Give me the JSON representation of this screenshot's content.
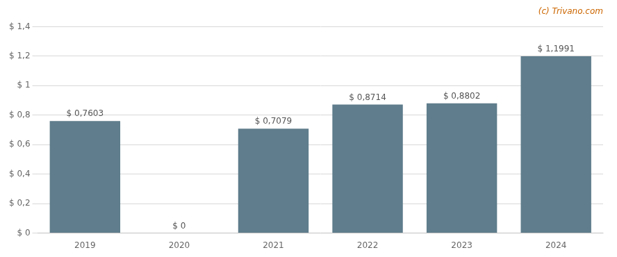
{
  "chart_data": {
    "type": "bar",
    "categories": [
      "2019",
      "2020",
      "2021",
      "2022",
      "2023",
      "2024"
    ],
    "values": [
      0.7603,
      0.0,
      0.7079,
      0.8714,
      0.8802,
      1.1991
    ],
    "value_labels": [
      "$ 0,7603",
      "$ 0",
      "$ 0,7079",
      "$ 0,8714",
      "$ 0,8802",
      "$ 1,1991"
    ],
    "data_labels": true,
    "color": "#5f7d8c",
    "ylim": [
      0,
      1.4
    ],
    "yticks": [
      {
        "value": 0,
        "label": "$ 0"
      },
      {
        "value": 0.2,
        "label": "$ 0,2"
      },
      {
        "value": 0.4,
        "label": "$ 0,4"
      },
      {
        "value": 0.6,
        "label": "$ 0,6"
      },
      {
        "value": 0.8,
        "label": "$ 0,8"
      },
      {
        "value": 1.0,
        "label": "$ 1"
      },
      {
        "value": 1.2,
        "label": "$ 1,2"
      },
      {
        "value": 1.4,
        "label": "$ 1,4"
      }
    ],
    "grid": true,
    "annotations": [
      "(c) Trivano.com"
    ]
  }
}
